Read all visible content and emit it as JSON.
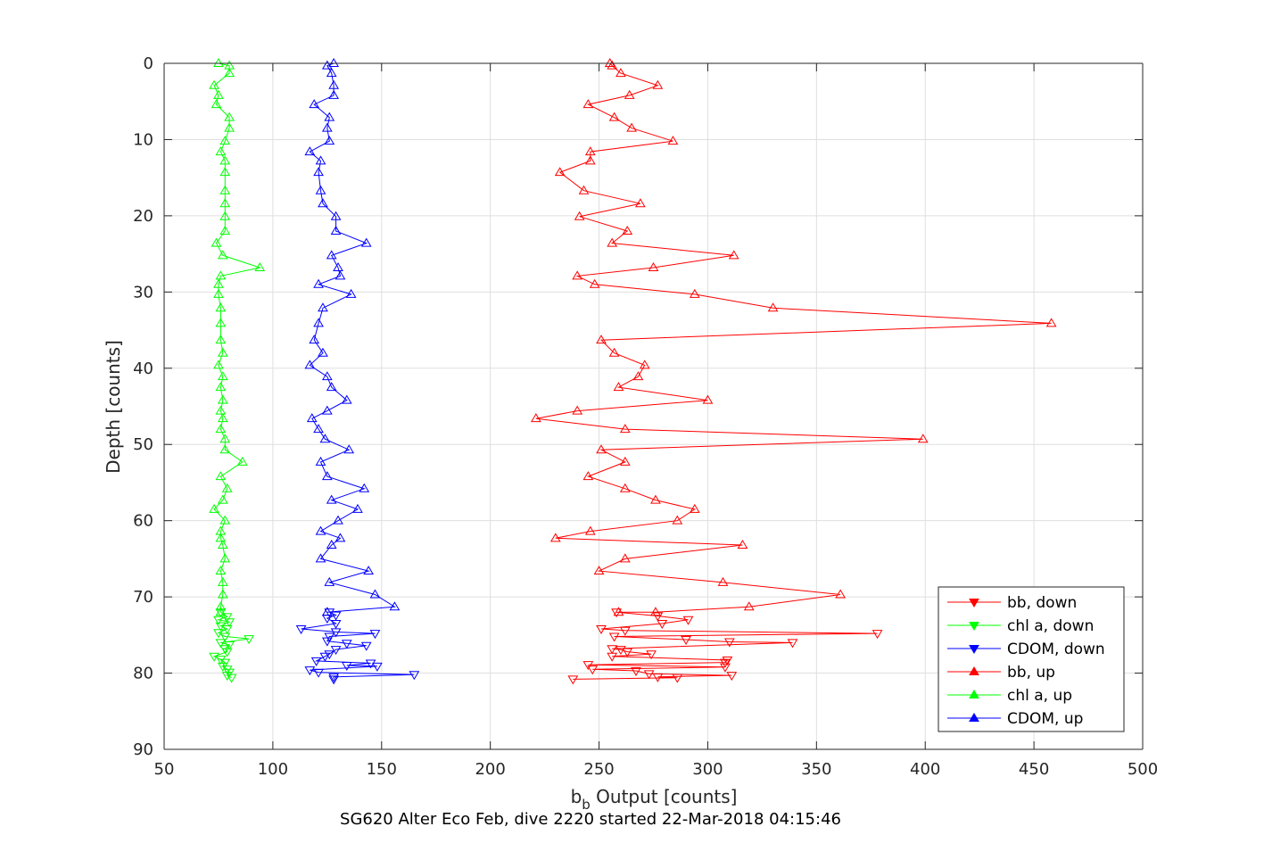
{
  "caption": "SG620 Alter Eco Feb, dive 2220 started 22-Mar-2018 04:15:46",
  "chart_data": {
    "type": "line",
    "xlabel_main": "b",
    "xlabel_sub": "b",
    "xlabel_rest": " Output [counts]",
    "ylabel": "Depth [counts]",
    "xlim": [
      50,
      500
    ],
    "ylim": [
      0,
      90
    ],
    "y_reversed": true,
    "grid": true,
    "legend_position": "lower-right",
    "xticks": [
      50,
      100,
      150,
      200,
      250,
      300,
      350,
      400,
      450,
      500
    ],
    "yticks": [
      0,
      10,
      20,
      30,
      40,
      50,
      60,
      70,
      80,
      90
    ],
    "series": [
      {
        "name": "bb, down",
        "color": "#ff0000",
        "marker": "triangle-down",
        "points": [
          [
            258,
            72
          ],
          [
            277,
            72.5
          ],
          [
            291,
            73
          ],
          [
            279,
            73.5
          ],
          [
            251,
            74.2
          ],
          [
            262,
            74.4
          ],
          [
            378,
            74.8
          ],
          [
            257,
            75.2
          ],
          [
            290,
            75.6
          ],
          [
            310,
            75.9
          ],
          [
            339,
            76
          ],
          [
            256,
            76.8
          ],
          [
            260,
            76.9
          ],
          [
            263,
            77.2
          ],
          [
            274,
            77.5
          ],
          [
            256,
            77.8
          ],
          [
            309,
            78.3
          ],
          [
            308,
            78.6
          ],
          [
            245,
            78.9
          ],
          [
            308,
            79.2
          ],
          [
            247,
            79.5
          ],
          [
            267,
            79.7
          ],
          [
            273,
            80.1
          ],
          [
            311,
            80.3
          ],
          [
            277,
            80.5
          ],
          [
            286,
            80.6
          ],
          [
            238,
            80.8
          ]
        ]
      },
      {
        "name": "chl a, down",
        "color": "#00ff00",
        "marker": "triangle-down",
        "points": [
          [
            76,
            72
          ],
          [
            79,
            72.6
          ],
          [
            75,
            73
          ],
          [
            80,
            73.3
          ],
          [
            76,
            73.8
          ],
          [
            79,
            74.2
          ],
          [
            75,
            74.7
          ],
          [
            78,
            75.2
          ],
          [
            89,
            75.5
          ],
          [
            76,
            76
          ],
          [
            80,
            76.3
          ],
          [
            78,
            76.8
          ],
          [
            79,
            77.2
          ],
          [
            73,
            77.8
          ],
          [
            76,
            78.2
          ],
          [
            78,
            78.6
          ],
          [
            77,
            79.1
          ],
          [
            79,
            79.5
          ],
          [
            80,
            79.9
          ],
          [
            79,
            80.3
          ],
          [
            81,
            80.6
          ]
        ]
      },
      {
        "name": "CDOM, down",
        "color": "#0000ff",
        "marker": "triangle-down",
        "points": [
          [
            126,
            72
          ],
          [
            129,
            72.4
          ],
          [
            125,
            72.8
          ],
          [
            129,
            73.5
          ],
          [
            113,
            74.2
          ],
          [
            129,
            74.6
          ],
          [
            147,
            74.8
          ],
          [
            126,
            75.2
          ],
          [
            125,
            75.8
          ],
          [
            134,
            76.1
          ],
          [
            143,
            76.4
          ],
          [
            129,
            76.9
          ],
          [
            126,
            77.5
          ],
          [
            124,
            77.8
          ],
          [
            120,
            78.4
          ],
          [
            145,
            78.7
          ],
          [
            134,
            79
          ],
          [
            148,
            79.1
          ],
          [
            117,
            79.6
          ],
          [
            121,
            79.9
          ],
          [
            165,
            80.2
          ],
          [
            128,
            80.5
          ],
          [
            128,
            80.8
          ]
        ]
      },
      {
        "name": "bb, up",
        "color": "#ff0000",
        "marker": "triangle-up",
        "points": [
          [
            255,
            0
          ],
          [
            256,
            0.3
          ],
          [
            260,
            1.3
          ],
          [
            277,
            2.9
          ],
          [
            264,
            4.2
          ],
          [
            245,
            5.4
          ],
          [
            257,
            7.1
          ],
          [
            265,
            8.5
          ],
          [
            284,
            10.2
          ],
          [
            246,
            11.6
          ],
          [
            246,
            12.8
          ],
          [
            232,
            14.3
          ],
          [
            243,
            16.7
          ],
          [
            269,
            18.4
          ],
          [
            241,
            20.1
          ],
          [
            263,
            22
          ],
          [
            256,
            23.6
          ],
          [
            312,
            25.2
          ],
          [
            275,
            26.8
          ],
          [
            240,
            27.9
          ],
          [
            248,
            29
          ],
          [
            294,
            30.3
          ],
          [
            330,
            32.1
          ],
          [
            458,
            34.1
          ],
          [
            251,
            36.3
          ],
          [
            257,
            38
          ],
          [
            271,
            39.6
          ],
          [
            268,
            41.1
          ],
          [
            259,
            42.5
          ],
          [
            300,
            44.2
          ],
          [
            240,
            45.6
          ],
          [
            221,
            46.6
          ],
          [
            262,
            48
          ],
          [
            399,
            49.3
          ],
          [
            251,
            50.7
          ],
          [
            262,
            52.3
          ],
          [
            245,
            54.2
          ],
          [
            262,
            55.8
          ],
          [
            276,
            57.3
          ],
          [
            294,
            58.5
          ],
          [
            286,
            60
          ],
          [
            246,
            61.4
          ],
          [
            230,
            62.3
          ],
          [
            316,
            63.2
          ],
          [
            262,
            65
          ],
          [
            250,
            66.6
          ],
          [
            307,
            68.1
          ],
          [
            361,
            69.7
          ],
          [
            319,
            71.3
          ],
          [
            276,
            72
          ],
          [
            259,
            72
          ]
        ]
      },
      {
        "name": "chl a, up",
        "color": "#00ff00",
        "marker": "triangle-up",
        "points": [
          [
            75,
            0
          ],
          [
            80,
            0.3
          ],
          [
            80,
            1.3
          ],
          [
            73,
            2.9
          ],
          [
            75,
            4.2
          ],
          [
            74,
            5.4
          ],
          [
            80,
            7.1
          ],
          [
            80,
            8.5
          ],
          [
            78,
            10.2
          ],
          [
            76,
            11.6
          ],
          [
            78,
            12.8
          ],
          [
            78,
            14.3
          ],
          [
            78,
            16.7
          ],
          [
            78,
            18.4
          ],
          [
            78,
            20.1
          ],
          [
            78,
            22
          ],
          [
            74,
            23.6
          ],
          [
            77,
            25.2
          ],
          [
            94,
            26.8
          ],
          [
            76,
            27.9
          ],
          [
            75,
            29
          ],
          [
            75,
            30.3
          ],
          [
            76,
            32.1
          ],
          [
            76,
            34.1
          ],
          [
            76,
            36.3
          ],
          [
            77,
            38
          ],
          [
            75,
            39.6
          ],
          [
            77,
            41.1
          ],
          [
            76,
            42.5
          ],
          [
            77,
            44.2
          ],
          [
            76,
            45.6
          ],
          [
            77,
            46.6
          ],
          [
            76,
            48
          ],
          [
            78,
            49.3
          ],
          [
            78,
            50.7
          ],
          [
            86,
            52.3
          ],
          [
            76,
            54.2
          ],
          [
            79,
            55.8
          ],
          [
            77,
            57.3
          ],
          [
            73,
            58.5
          ],
          [
            78,
            60
          ],
          [
            76,
            61.4
          ],
          [
            76,
            62.3
          ],
          [
            77,
            63.2
          ],
          [
            78,
            65
          ],
          [
            76,
            66.6
          ],
          [
            77,
            68.1
          ],
          [
            77,
            69.7
          ],
          [
            76,
            71.3
          ],
          [
            76,
            72
          ]
        ]
      },
      {
        "name": "CDOM, up",
        "color": "#0000ff",
        "marker": "triangle-up",
        "points": [
          [
            128,
            0
          ],
          [
            125,
            0.3
          ],
          [
            127,
            1.3
          ],
          [
            128,
            2.9
          ],
          [
            128,
            4.2
          ],
          [
            119,
            5.4
          ],
          [
            126,
            7.1
          ],
          [
            125,
            8.5
          ],
          [
            126,
            10.2
          ],
          [
            117,
            11.6
          ],
          [
            122,
            12.8
          ],
          [
            121,
            14.3
          ],
          [
            122,
            16.7
          ],
          [
            123,
            18.4
          ],
          [
            129,
            20.1
          ],
          [
            129,
            22
          ],
          [
            143,
            23.6
          ],
          [
            127,
            25.2
          ],
          [
            130,
            26.8
          ],
          [
            131,
            27.9
          ],
          [
            121,
            29
          ],
          [
            136,
            30.3
          ],
          [
            123,
            32.1
          ],
          [
            121,
            34.1
          ],
          [
            119,
            36.3
          ],
          [
            123,
            38
          ],
          [
            117,
            39.6
          ],
          [
            125,
            41.1
          ],
          [
            127,
            42.5
          ],
          [
            134,
            44.2
          ],
          [
            125,
            45.6
          ],
          [
            118,
            46.6
          ],
          [
            121,
            48
          ],
          [
            124,
            49.3
          ],
          [
            135,
            50.7
          ],
          [
            122,
            52.3
          ],
          [
            125,
            54.2
          ],
          [
            142,
            55.8
          ],
          [
            127,
            57.3
          ],
          [
            139,
            58.5
          ],
          [
            130,
            60
          ],
          [
            122,
            61.4
          ],
          [
            131,
            62.3
          ],
          [
            127,
            63.2
          ],
          [
            122,
            65
          ],
          [
            144,
            66.6
          ],
          [
            126,
            68.1
          ],
          [
            147,
            69.7
          ],
          [
            156,
            71.3
          ],
          [
            125,
            72
          ]
        ]
      }
    ]
  }
}
